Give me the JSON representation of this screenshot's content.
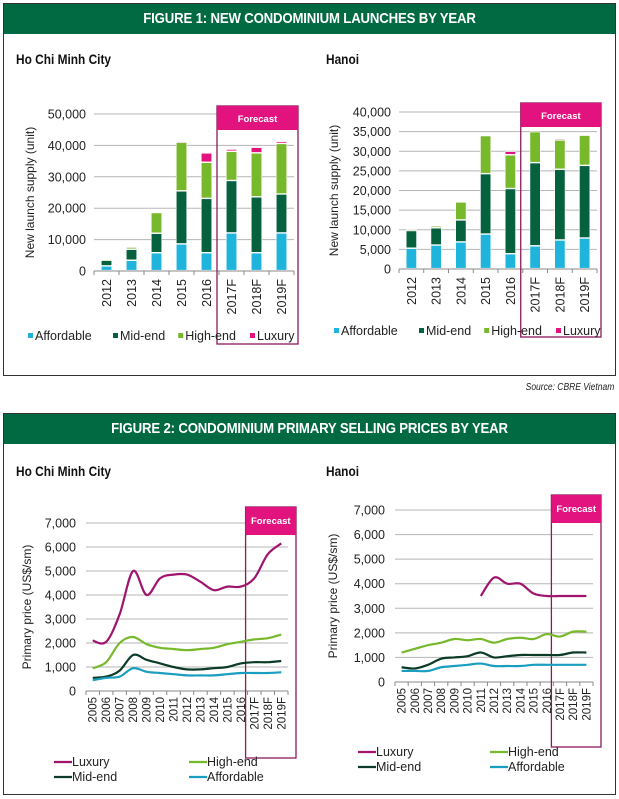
{
  "figure1": {
    "title": "FIGURE 1: NEW CONDOMINIUM LAUNCHES BY YEAR",
    "source": "Source: CBRE Vietnam"
  },
  "figure2": {
    "title": "FIGURE 2: CONDOMINIUM PRIMARY SELLING PRICES BY YEAR"
  },
  "colors": {
    "header_green": "#016a43",
    "affordable": "#1eb4dc",
    "mid_end": "#06613f",
    "high_end": "#78b92c",
    "luxury": "#e2127f",
    "luxury_line": "#a0146e",
    "midend_line": "#0c3b27",
    "affordable_line": "#1a9ec0",
    "forecast": "#e2127f",
    "forecast_border": "#8b1a5c"
  },
  "chart_data": [
    {
      "id": "hcmc-launches",
      "type": "bar",
      "stacked": true,
      "title": "Ho Chi Minh City",
      "ylabel": "New launch supply (unit)",
      "xlabel": "",
      "ylim": [
        0,
        50000
      ],
      "yticks": [
        0,
        10000,
        20000,
        30000,
        40000,
        50000
      ],
      "ytick_labels": [
        "0",
        "10,000",
        "20,000",
        "30,000",
        "40,000",
        "50,000"
      ],
      "categories": [
        "2012",
        "2013",
        "2014",
        "2015",
        "2016",
        "2017F",
        "2018F",
        "2019F"
      ],
      "forecast_label": "Forecast",
      "forecast_start_index": 5,
      "grid": true,
      "legend_position": "bottom",
      "series": [
        {
          "name": "Affordable",
          "values": [
            1500,
            3300,
            5700,
            8500,
            5700,
            12000,
            5700,
            12000
          ]
        },
        {
          "name": "Mid-end",
          "values": [
            1800,
            3500,
            6200,
            16900,
            17300,
            16700,
            17800,
            12400
          ]
        },
        {
          "name": "High-end",
          "values": [
            300,
            700,
            6600,
            15500,
            11500,
            9300,
            14000,
            16100
          ]
        },
        {
          "name": "Luxury",
          "values": [
            0,
            0,
            0,
            300,
            3000,
            700,
            1800,
            700
          ]
        }
      ]
    },
    {
      "id": "hanoi-launches",
      "type": "bar",
      "stacked": true,
      "title": "Hanoi",
      "ylabel": "New launch supply (unit)",
      "xlabel": "",
      "ylim": [
        0,
        40000
      ],
      "yticks": [
        0,
        5000,
        10000,
        15000,
        20000,
        25000,
        30000,
        35000,
        40000
      ],
      "ytick_labels": [
        "0",
        "5,000",
        "10,000",
        "15,000",
        "20,000",
        "25,000",
        "30,000",
        "35,000",
        "40,000"
      ],
      "categories": [
        "2012",
        "2013",
        "2014",
        "2015",
        "2016",
        "2017F",
        "2018F",
        "2019F"
      ],
      "forecast_label": "Forecast",
      "forecast_start_index": 5,
      "grid": true,
      "legend_position": "bottom",
      "series": [
        {
          "name": "Affordable",
          "values": [
            5200,
            6000,
            6800,
            8800,
            3800,
            5800,
            7300,
            7800
          ]
        },
        {
          "name": "Mid-end",
          "values": [
            4500,
            4400,
            5600,
            15400,
            16600,
            21200,
            18000,
            18500
          ]
        },
        {
          "name": "High-end",
          "values": [
            300,
            500,
            4600,
            9700,
            8600,
            7900,
            7500,
            7700
          ]
        },
        {
          "name": "Luxury",
          "values": [
            0,
            0,
            0,
            0,
            900,
            0,
            200,
            0
          ]
        }
      ]
    },
    {
      "id": "hcmc-prices",
      "type": "line",
      "title": "Ho Chi Minh City",
      "ylabel": "Primary price (US$/sm)",
      "xlabel": "",
      "ylim": [
        0,
        7000
      ],
      "yticks": [
        0,
        1000,
        2000,
        3000,
        4000,
        5000,
        6000,
        7000
      ],
      "ytick_labels": [
        "0",
        "1,000",
        "2,000",
        "3,000",
        "4,000",
        "5,000",
        "6,000",
        "7,000"
      ],
      "x": [
        "2005",
        "2006",
        "2007",
        "2008",
        "2009",
        "2010",
        "2011",
        "2012",
        "2013",
        "2014",
        "2015",
        "2016",
        "2017F",
        "2018F",
        "2019F"
      ],
      "forecast_label": "Forecast",
      "forecast_start_index": 12,
      "grid": true,
      "legend_position": "bottom",
      "series": [
        {
          "name": "Luxury",
          "values": [
            2100,
            2050,
            3200,
            5000,
            4000,
            4700,
            4850,
            4850,
            4550,
            4200,
            4350,
            4350,
            4700,
            5700,
            6150
          ]
        },
        {
          "name": "High-end",
          "values": [
            950,
            1200,
            2000,
            2250,
            1950,
            1800,
            1750,
            1700,
            1750,
            1800,
            1950,
            2050,
            2150,
            2200,
            2350
          ]
        },
        {
          "name": "Mid-end",
          "values": [
            550,
            600,
            850,
            1500,
            1300,
            1150,
            1000,
            900,
            900,
            950,
            1000,
            1150,
            1200,
            1200,
            1250
          ]
        },
        {
          "name": "Affordable",
          "values": [
            450,
            550,
            600,
            950,
            800,
            750,
            700,
            650,
            650,
            650,
            700,
            750,
            750,
            750,
            780
          ]
        }
      ]
    },
    {
      "id": "hanoi-prices",
      "type": "line",
      "title": "Hanoi",
      "ylabel": "Primary price (US$/sm)",
      "xlabel": "",
      "ylim": [
        0,
        7000
      ],
      "yticks": [
        0,
        1000,
        2000,
        3000,
        4000,
        5000,
        6000,
        7000
      ],
      "ytick_labels": [
        "0",
        "1,000",
        "2,000",
        "3,000",
        "4,000",
        "5,000",
        "6,000",
        "7,000"
      ],
      "x": [
        "2005",
        "2006",
        "2007",
        "2008",
        "2009",
        "2010",
        "2011",
        "2012",
        "2013",
        "2014",
        "2015",
        "2016",
        "2017F",
        "2018F",
        "2019F"
      ],
      "forecast_label": "Forecast",
      "forecast_start_index": 12,
      "grid": true,
      "legend_position": "bottom",
      "series": [
        {
          "name": "Luxury",
          "values": [
            null,
            null,
            null,
            null,
            null,
            null,
            3500,
            4250,
            4000,
            4000,
            3600,
            3500,
            3500,
            3500,
            3500
          ]
        },
        {
          "name": "High-end",
          "values": [
            1200,
            1350,
            1500,
            1600,
            1750,
            1700,
            1750,
            1600,
            1750,
            1800,
            1750,
            1950,
            1850,
            2050,
            2050
          ]
        },
        {
          "name": "Mid-end",
          "values": [
            600,
            550,
            700,
            950,
            1000,
            1050,
            1200,
            1000,
            1050,
            1100,
            1100,
            1100,
            1100,
            1200,
            1200
          ]
        },
        {
          "name": "Affordable",
          "values": [
            450,
            450,
            450,
            600,
            650,
            700,
            750,
            650,
            650,
            650,
            700,
            700,
            700,
            700,
            700
          ]
        }
      ]
    }
  ],
  "city_titles": {
    "fig1_left": "Ho Chi Minh City",
    "fig1_right": "Hanoi",
    "fig2_left": "Ho Chi Minh City",
    "fig2_right": "Hanoi"
  }
}
